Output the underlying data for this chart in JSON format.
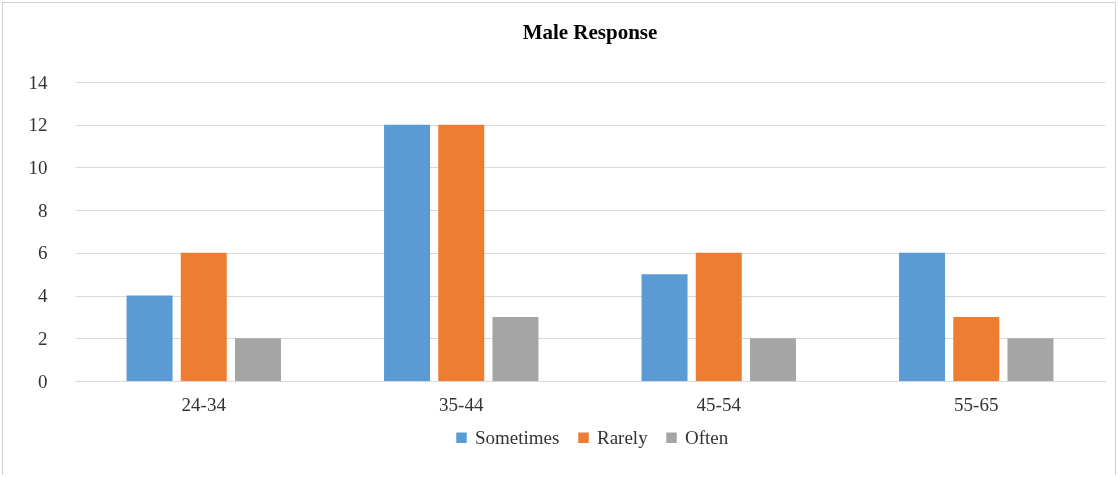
{
  "chart_data": {
    "type": "bar",
    "title": "Male Response",
    "categories": [
      "24-34",
      "35-44",
      "45-54",
      "55-65"
    ],
    "series": [
      {
        "name": "Sometimes",
        "color": "#5b9bd5",
        "values": [
          4,
          12,
          5,
          6
        ]
      },
      {
        "name": "Rarely",
        "color": "#ed7d31",
        "values": [
          6,
          12,
          6,
          3
        ]
      },
      {
        "name": "Often",
        "color": "#a5a5a5",
        "values": [
          2,
          3,
          2,
          2
        ]
      }
    ],
    "ylim": [
      0,
      14
    ],
    "yticks": [
      0,
      2,
      4,
      6,
      8,
      10,
      12,
      14
    ],
    "grid": "y",
    "legend": "bottom"
  }
}
